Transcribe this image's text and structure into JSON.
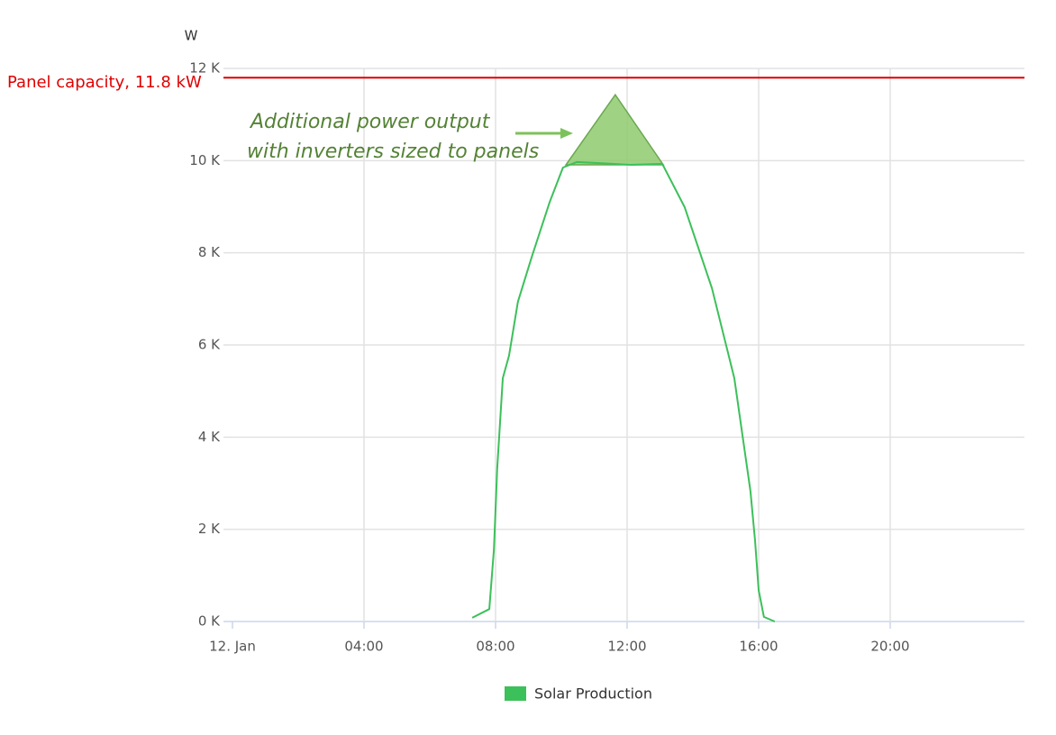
{
  "chart_data": {
    "type": "line",
    "y_axis_label": "W",
    "xlim": [
      0,
      24
    ],
    "ylim": [
      0,
      12000
    ],
    "xticks": [
      {
        "value": 0,
        "label": "12. Jan"
      },
      {
        "value": 4,
        "label": "04:00"
      },
      {
        "value": 8,
        "label": "08:00"
      },
      {
        "value": 12,
        "label": "12:00"
      },
      {
        "value": 16,
        "label": "16:00"
      },
      {
        "value": 20,
        "label": "20:00"
      }
    ],
    "yticks": [
      {
        "value": 0,
        "label": "0 K"
      },
      {
        "value": 2000,
        "label": "2 K"
      },
      {
        "value": 4000,
        "label": "4 K"
      },
      {
        "value": 6000,
        "label": "6 K"
      },
      {
        "value": 8000,
        "label": "8 K"
      },
      {
        "value": 10000,
        "label": "10 K"
      },
      {
        "value": 12000,
        "label": "12 K"
      }
    ],
    "grid": true,
    "series": [
      {
        "name": "Solar Production",
        "color": "#3cc05a",
        "x": [
          7.29,
          7.81,
          7.95,
          8.05,
          8.22,
          8.41,
          8.68,
          9.1,
          9.64,
          10.05,
          10.47,
          11.3,
          12.1,
          13.07,
          13.75,
          14.58,
          15.26,
          15.75,
          15.89,
          16.0,
          16.16,
          16.49
        ],
        "values": [
          80,
          270,
          1560,
          3320,
          5280,
          5770,
          6940,
          7910,
          9090,
          9850,
          9970,
          9940,
          9910,
          9930,
          8990,
          7230,
          5280,
          2830,
          1760,
          680,
          100,
          0
        ]
      }
    ],
    "reference_line": {
      "label": "Panel capacity, 11.8 kW",
      "value": 11800,
      "color": "#e00000"
    },
    "annotation": {
      "lines": [
        "Additional power output",
        "with inverters sized to panels"
      ],
      "color": "#548235",
      "region": {
        "x": [
          10.14,
          11.64,
          13.1
        ],
        "values": [
          9910,
          11430,
          9910
        ]
      }
    }
  }
}
